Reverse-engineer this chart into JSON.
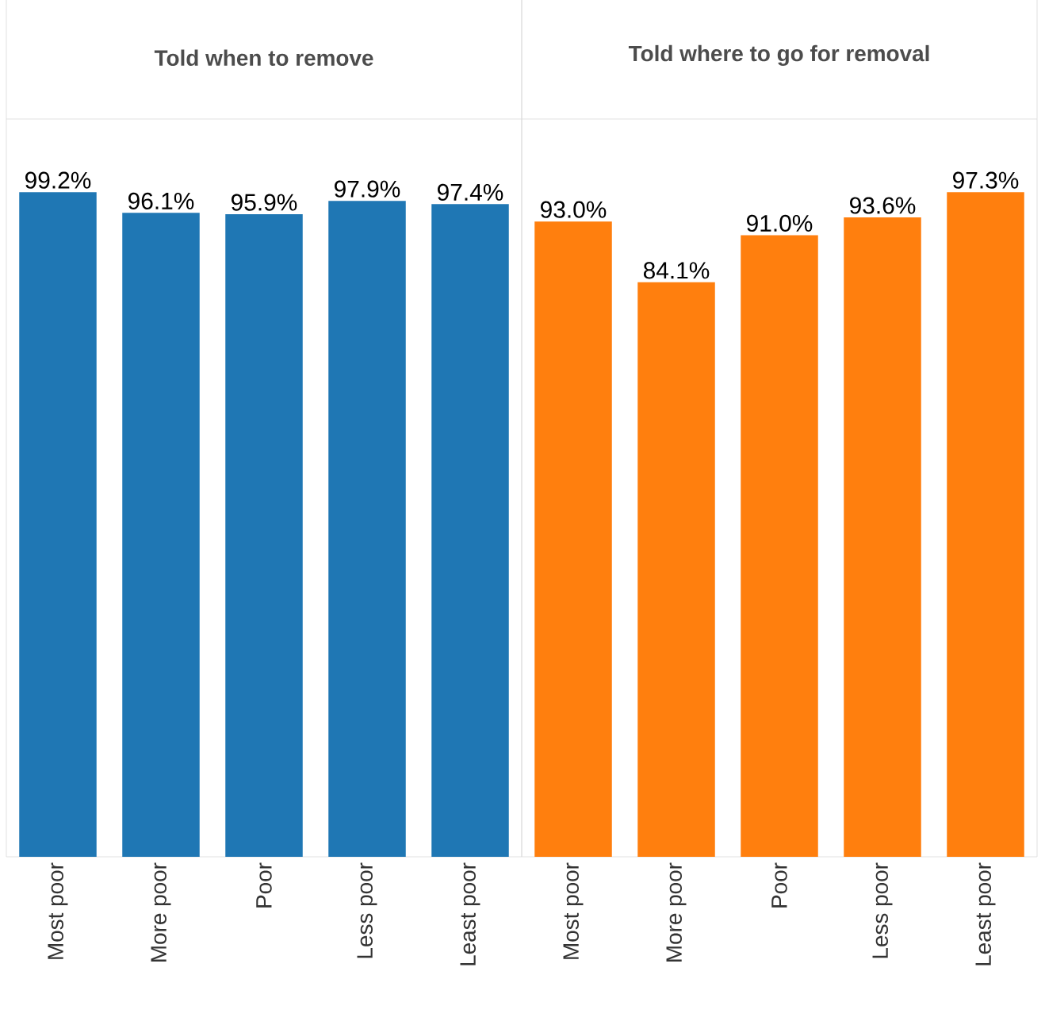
{
  "chart_data": [
    {
      "type": "bar",
      "title": "Told when to remove",
      "categories": [
        "Most poor",
        "More poor",
        "Poor",
        "Less poor",
        "Least poor"
      ],
      "values": [
        99.2,
        96.1,
        95.9,
        97.9,
        97.4
      ],
      "value_labels": [
        "99.2%",
        "96.1%",
        "95.9%",
        "97.9%",
        "97.4%"
      ],
      "color": "#1f77b4"
    },
    {
      "type": "bar",
      "title": "Told where to go for removal",
      "categories": [
        "Most poor",
        "More poor",
        "Poor",
        "Less poor",
        "Least poor"
      ],
      "values": [
        93.0,
        84.1,
        91.0,
        93.6,
        97.3
      ],
      "value_labels": [
        "93.0%",
        "84.1%",
        "91.0%",
        "93.6%",
        "97.3%"
      ],
      "color": "#ff7f0e"
    }
  ]
}
